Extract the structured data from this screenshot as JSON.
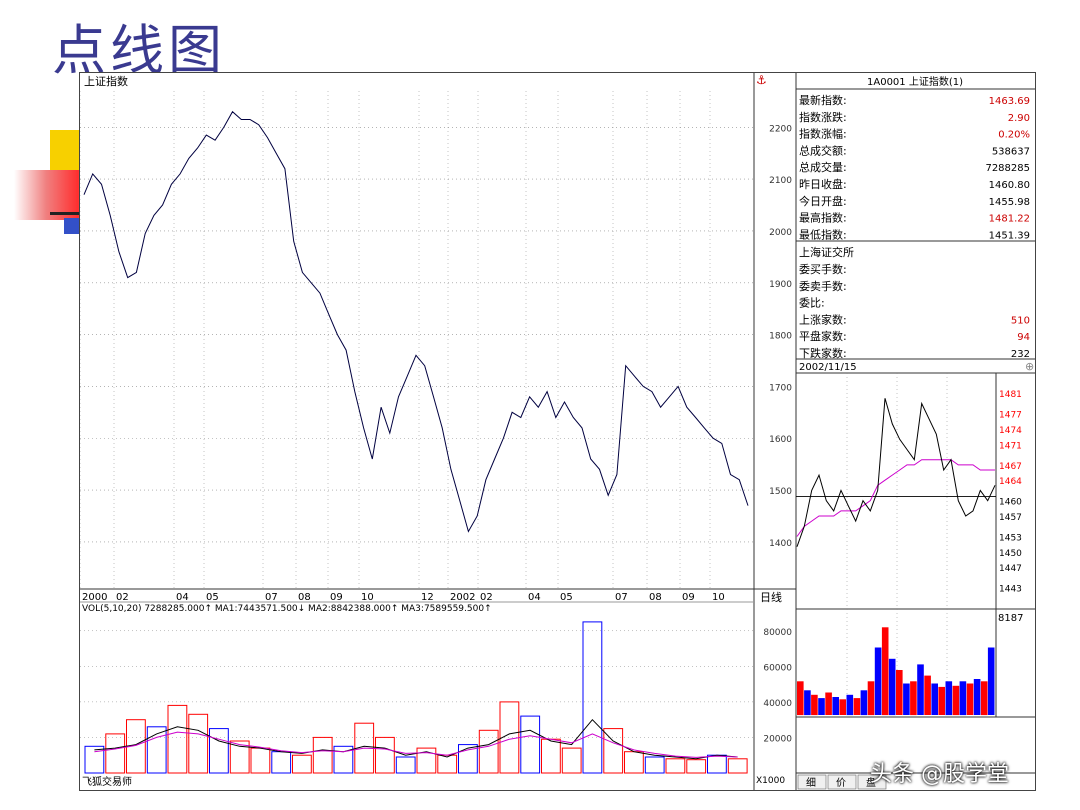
{
  "slide_title": "点线图",
  "watermark": "头条 @股学堂",
  "main_chart": {
    "title": "上证指数",
    "period_button": "日线",
    "x_labels": [
      "2000",
      "02",
      "04",
      "05",
      "07",
      "08",
      "09",
      "10",
      "12",
      "2002",
      "02",
      "04",
      "05",
      "07",
      "08",
      "09",
      "10"
    ],
    "y_ticks": [
      2200,
      2100,
      2000,
      1900,
      1800,
      1700,
      1600,
      1500,
      1400
    ],
    "ylim": [
      1340,
      2270
    ]
  },
  "volume_panel": {
    "header": "VOL(5,10,20) 7288285.000↑ MA1:7443571.500↓ MA2:8842388.000↑ MA3:7589559.500↑",
    "y_ticks": [
      80000,
      60000,
      40000,
      20000
    ],
    "ylim": [
      0,
      90000
    ],
    "multiplier": "X1000",
    "footer": "飞狐交易师"
  },
  "quote_panel": {
    "header": "1A0001 上证指数(1)",
    "rows": [
      {
        "label": "最新指数:",
        "value": "1463.69",
        "color": "#cc0000"
      },
      {
        "label": "指数涨跌:",
        "value": "2.90",
        "color": "#cc0000"
      },
      {
        "label": "指数涨幅:",
        "value": "0.20%",
        "color": "#cc0000"
      },
      {
        "label": "总成交额:",
        "value": "538637",
        "color": "#000000"
      },
      {
        "label": "总成交量:",
        "value": "7288285",
        "color": "#000000"
      },
      {
        "label": "昨日收盘:",
        "value": "1460.80",
        "color": "#000000"
      },
      {
        "label": "今日开盘:",
        "value": "1455.98",
        "color": "#000000"
      },
      {
        "label": "最高指数:",
        "value": "1481.22",
        "color": "#cc0000"
      },
      {
        "label": "最低指数:",
        "value": "1451.39",
        "color": "#000000"
      }
    ],
    "exchange": "上海证交所",
    "rows2": [
      {
        "label": "委买手数:",
        "value": "",
        "color": "#000000"
      },
      {
        "label": "委卖手数:",
        "value": "",
        "color": "#000000"
      },
      {
        "label": "委比:",
        "value": "",
        "color": "#000000"
      },
      {
        "label": "上涨家数:",
        "value": "510",
        "color": "#cc0000"
      },
      {
        "label": "平盘家数:",
        "value": "94",
        "color": "#cc0000"
      },
      {
        "label": "下跌家数:",
        "value": "232",
        "color": "#000000"
      }
    ]
  },
  "intraday": {
    "date": "2002/11/15",
    "y_ticks": [
      1481,
      1477,
      1474,
      1471,
      1467,
      1464,
      1460,
      1457,
      1453,
      1450,
      1447,
      1443
    ],
    "ylim": [
      1440,
      1483
    ],
    "prev_close": 1460.8,
    "vol_label": "8187"
  },
  "tabs": [
    "细",
    "价",
    "盘"
  ],
  "colors": {
    "up": "#ff0000",
    "down": "#0000ff",
    "price": "#000040",
    "ma": "#cc00cc",
    "grid": "#888888"
  },
  "chart_data": [
    {
      "type": "line",
      "title": "上证指数",
      "x_range": [
        "2000-12",
        "2002-11"
      ],
      "series": [],
      "values": [
        2070,
        2110,
        2090,
        2030,
        1960,
        1910,
        1920,
        1995,
        2030,
        2050,
        2090,
        2110,
        2140,
        2160,
        2185,
        2175,
        2200,
        2230,
        2215,
        2215,
        2205,
        2180,
        2150,
        2120,
        1980,
        1920,
        1900,
        1880,
        1840,
        1800,
        1770,
        1690,
        1620,
        1560,
        1660,
        1610,
        1680,
        1720,
        1760,
        1740,
        1680,
        1620,
        1540,
        1480,
        1420,
        1450,
        1520,
        1560,
        1600,
        1650,
        1640,
        1680,
        1660,
        1690,
        1640,
        1670,
        1640,
        1620,
        1560,
        1540,
        1490,
        1530,
        1740,
        1720,
        1700,
        1690,
        1660,
        1680,
        1700,
        1660,
        1640,
        1620,
        1600,
        1590,
        1530,
        1520,
        1470
      ],
      "ylim": [
        1340,
        2270
      ]
    },
    {
      "type": "bar",
      "title": "VOL",
      "series": [
        {
          "name": "MA1",
          "values": [
            13000,
            14000,
            16000,
            22000,
            26000,
            24000,
            18000,
            15000,
            14000,
            12000,
            11000,
            13000,
            12000,
            15000,
            14000,
            10000,
            12000,
            9000,
            14000,
            16000,
            22000,
            24000,
            18000,
            16000,
            30000,
            18000,
            12000,
            10000,
            9000,
            8000,
            10000,
            9000
          ]
        },
        {
          "name": "MA2",
          "values": [
            12000,
            13500,
            15500,
            20000,
            23000,
            22000,
            19000,
            16000,
            14500,
            12500,
            11500,
            12500,
            12000,
            14000,
            13500,
            11000,
            11500,
            10000,
            13000,
            15000,
            19000,
            21000,
            19000,
            17000,
            22000,
            17000,
            13000,
            11000,
            9500,
            8800,
            9500,
            9000
          ]
        }
      ],
      "values": [
        15000,
        22000,
        30000,
        26000,
        38000,
        33000,
        25000,
        18000,
        14000,
        12000,
        10000,
        20000,
        15000,
        28000,
        20000,
        9000,
        14000,
        10000,
        16000,
        24000,
        40000,
        32000,
        19000,
        14000,
        85000,
        25000,
        12000,
        9000,
        8000,
        7500,
        10000,
        8000
      ],
      "ylim": [
        0,
        90000
      ]
    },
    {
      "type": "line",
      "title": "2002/11/15",
      "series": [
        {
          "name": "price",
          "values": [
            1451,
            1455,
            1462,
            1465,
            1460,
            1458,
            1462,
            1459,
            1456,
            1460,
            1458,
            1462,
            1480,
            1475,
            1472,
            1470,
            1468,
            1479,
            1476,
            1473,
            1466,
            1468,
            1460,
            1457,
            1458,
            1462,
            1460,
            1463
          ]
        },
        {
          "name": "avg",
          "values": [
            1453,
            1455,
            1456,
            1457,
            1457,
            1457,
            1458,
            1458,
            1458,
            1459,
            1460,
            1463,
            1464,
            1465,
            1466,
            1467,
            1467,
            1468,
            1468,
            1468,
            1468,
            1468,
            1467,
            1467,
            1467,
            1466,
            1466,
            1466
          ]
        }
      ],
      "ylim": [
        1440,
        1483
      ]
    }
  ]
}
